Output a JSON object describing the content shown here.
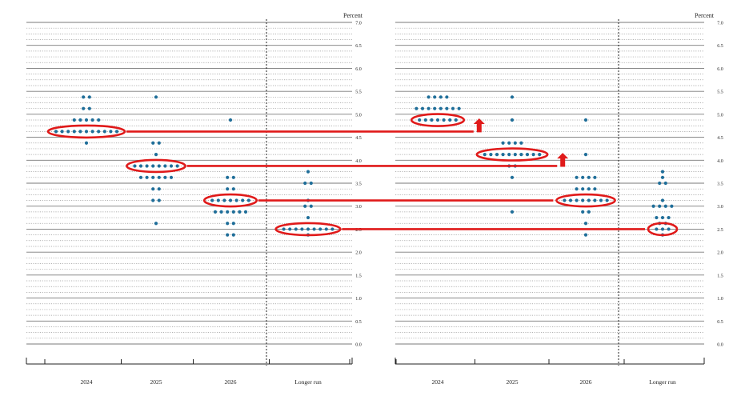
{
  "chart_data": [
    {
      "type": "scatter",
      "unit_label": "Percent",
      "categories": [
        "2024",
        "2025",
        "2026",
        "Longer run"
      ],
      "ylim": [
        0,
        7
      ],
      "yticks": [
        "0.0",
        "0.5",
        "1.0",
        "1.5",
        "2.0",
        "2.5",
        "3.0",
        "3.5",
        "4.0",
        "4.5",
        "5.0",
        "5.5",
        "6.0",
        "6.5",
        "7.0"
      ],
      "dots": [
        {
          "category": "2024",
          "rows": [
            [
              5.375,
              2
            ],
            [
              5.125,
              2
            ],
            [
              4.875,
              5
            ],
            [
              4.625,
              11
            ],
            [
              4.375,
              1
            ]
          ]
        },
        {
          "category": "2025",
          "rows": [
            [
              5.375,
              1
            ],
            [
              4.375,
              2
            ],
            [
              4.125,
              1
            ],
            [
              3.875,
              8
            ],
            [
              3.625,
              6
            ],
            [
              3.375,
              2
            ],
            [
              3.125,
              2
            ],
            [
              2.625,
              1
            ]
          ]
        },
        {
          "category": "2026",
          "rows": [
            [
              4.875,
              1
            ],
            [
              3.625,
              2
            ],
            [
              3.375,
              2
            ],
            [
              3.125,
              7
            ],
            [
              2.875,
              6
            ],
            [
              2.625,
              2
            ],
            [
              2.375,
              2
            ]
          ]
        },
        {
          "category": "Longer run",
          "rows": [
            [
              3.75,
              1
            ],
            [
              3.5,
              2
            ],
            [
              3.125,
              1
            ],
            [
              3.0,
              2
            ],
            [
              2.75,
              1
            ],
            [
              2.5,
              9
            ],
            [
              2.375,
              1
            ]
          ]
        }
      ],
      "highlights": [
        {
          "category": "2024",
          "value": 4.625
        },
        {
          "category": "2025",
          "value": 3.875
        },
        {
          "category": "2026",
          "value": 3.125
        },
        {
          "category": "Longer run",
          "value": 2.5
        }
      ]
    },
    {
      "type": "scatter",
      "unit_label": "Percent",
      "categories": [
        "2024",
        "2025",
        "2026",
        "Longer run"
      ],
      "ylim": [
        0,
        7
      ],
      "yticks": [
        "0.0",
        "0.5",
        "1.0",
        "1.5",
        "2.0",
        "2.5",
        "3.0",
        "3.5",
        "4.0",
        "4.5",
        "5.0",
        "5.5",
        "6.0",
        "6.5",
        "7.0"
      ],
      "dots": [
        {
          "category": "2024",
          "rows": [
            [
              5.375,
              4
            ],
            [
              5.125,
              8
            ],
            [
              4.875,
              7
            ]
          ]
        },
        {
          "category": "2025",
          "rows": [
            [
              5.375,
              1
            ],
            [
              4.875,
              1
            ],
            [
              4.375,
              4
            ],
            [
              4.125,
              10
            ],
            [
              3.875,
              2
            ],
            [
              3.625,
              1
            ],
            [
              2.875,
              1
            ]
          ]
        },
        {
          "category": "2026",
          "rows": [
            [
              4.875,
              1
            ],
            [
              4.125,
              1
            ],
            [
              3.625,
              4
            ],
            [
              3.375,
              4
            ],
            [
              3.125,
              8
            ],
            [
              2.875,
              2
            ],
            [
              2.625,
              1
            ],
            [
              2.375,
              1
            ]
          ]
        },
        {
          "category": "Longer run",
          "rows": [
            [
              3.75,
              1
            ],
            [
              3.625,
              1
            ],
            [
              3.5,
              2
            ],
            [
              3.125,
              1
            ],
            [
              3.0,
              4
            ],
            [
              2.75,
              3
            ],
            [
              2.625,
              2
            ],
            [
              2.5,
              3
            ],
            [
              2.375,
              1
            ]
          ]
        }
      ],
      "highlights": [
        {
          "category": "2024",
          "value": 4.875
        },
        {
          "category": "2025",
          "value": 4.125
        },
        {
          "category": "2026",
          "value": 3.125
        },
        {
          "category": "Longer run",
          "value": 2.5
        }
      ]
    }
  ],
  "comparison_lines": [
    {
      "category": "2024",
      "from_value": 4.625,
      "to_value": 4.875,
      "arrow": "up"
    },
    {
      "category": "2025",
      "from_value": 3.875,
      "to_value": 4.125,
      "arrow": "up"
    },
    {
      "category": "2026",
      "from_value": 3.125,
      "to_value": 3.125,
      "arrow": "none"
    },
    {
      "category": "Longer run",
      "from_value": 2.5,
      "to_value": 2.5,
      "arrow": "none"
    }
  ],
  "colors": {
    "dot": "#1f6e99",
    "highlight": "#e01a1a"
  }
}
